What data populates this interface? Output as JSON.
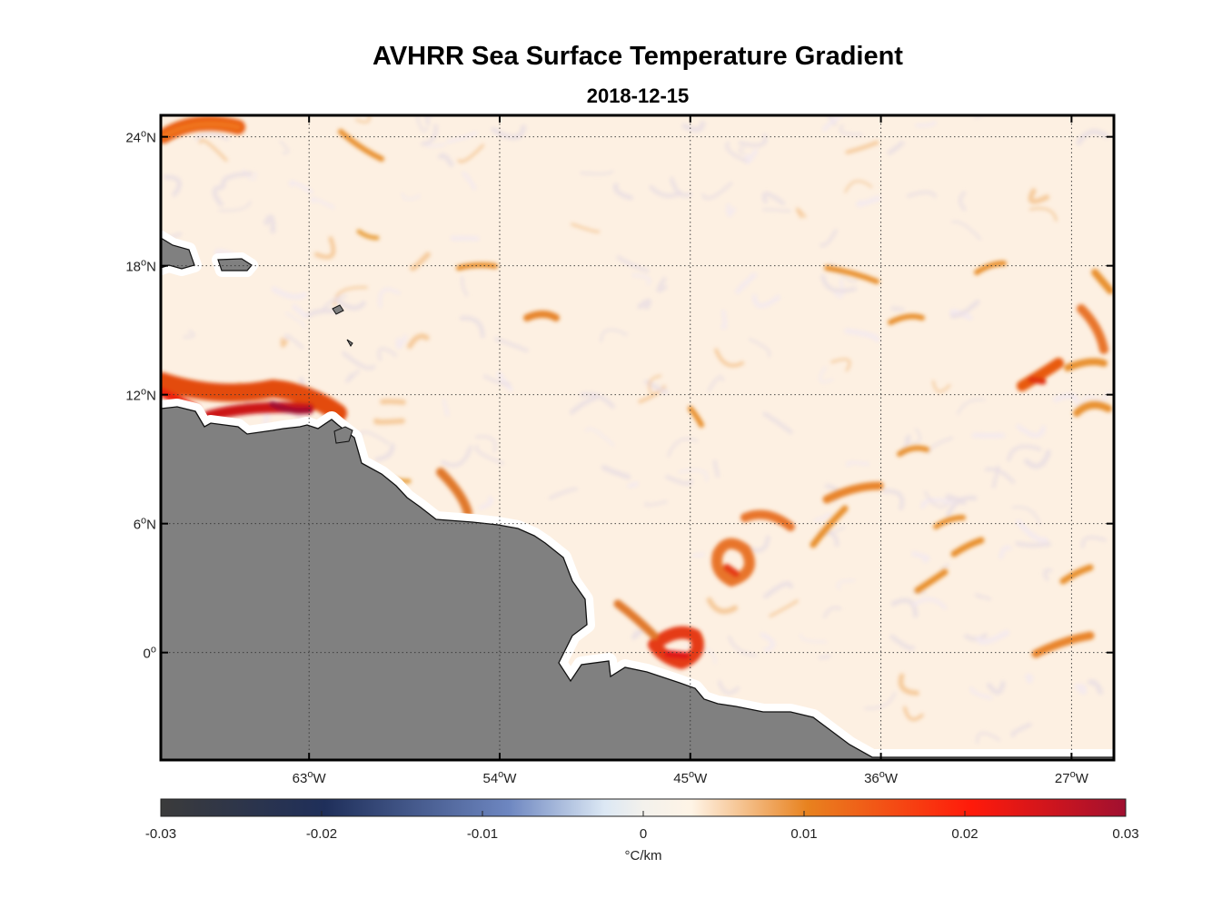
{
  "figure": {
    "title": "AVHRR Sea Surface Temperature Gradient",
    "subtitle": "2018-12-15"
  },
  "map": {
    "lon_range": [
      -70,
      -25
    ],
    "lat_range": [
      -5,
      25
    ],
    "lat_ticks": [
      {
        "value": 24,
        "num": "24",
        "hemi": "N"
      },
      {
        "value": 18,
        "num": "18",
        "hemi": "N"
      },
      {
        "value": 12,
        "num": "12",
        "hemi": "N"
      },
      {
        "value": 6,
        "num": "6",
        "hemi": "N"
      },
      {
        "value": 0,
        "num": "0",
        "hemi": ""
      }
    ],
    "lon_ticks": [
      {
        "value": -63,
        "num": "63",
        "hemi": "W"
      },
      {
        "value": -54,
        "num": "54",
        "hemi": "W"
      },
      {
        "value": -45,
        "num": "45",
        "hemi": "W"
      },
      {
        "value": -36,
        "num": "36",
        "hemi": "W"
      },
      {
        "value": -27,
        "num": "27",
        "hemi": "W"
      }
    ],
    "degree_symbol": "o",
    "land_color": "#808080",
    "grid": "dotted",
    "background_color": "#fdf0e2"
  },
  "colorbar": {
    "label": "°C/km",
    "range": [
      -0.03,
      0.03
    ],
    "tick_values": [
      -0.03,
      -0.02,
      -0.01,
      0,
      0.01,
      0.02,
      0.03
    ],
    "tick_labels": [
      "-0.03",
      "-0.02",
      "-0.01",
      "0",
      "0.01",
      "0.02",
      "0.03"
    ],
    "colors": [
      "#3b3b3b",
      "#1f2f5a",
      "#6d86c0",
      "#dce8f4",
      "#fff4e6",
      "#e8821f",
      "#ff1a0a",
      "#a01030"
    ]
  }
}
